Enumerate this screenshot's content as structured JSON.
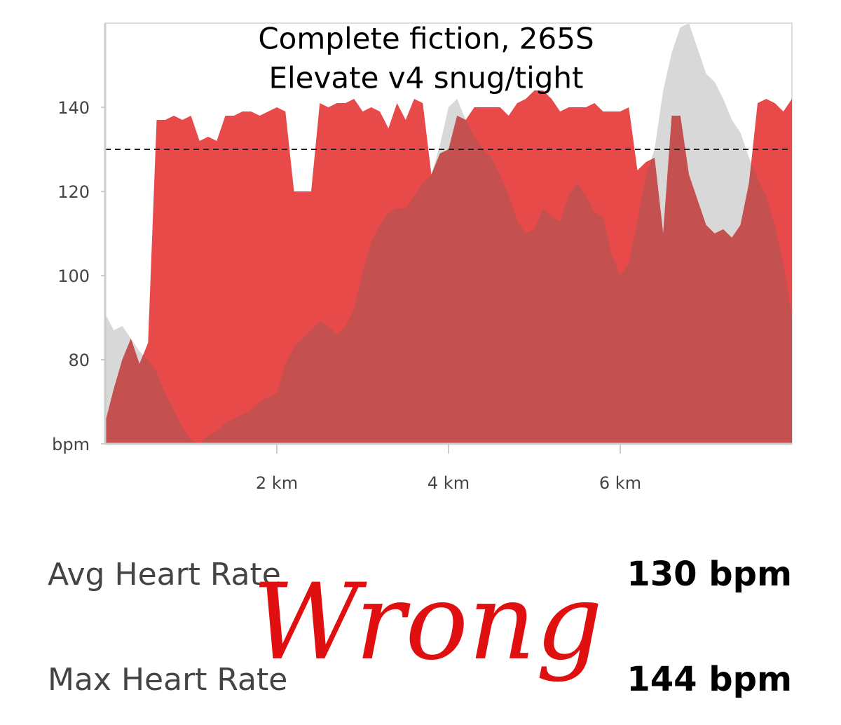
{
  "chart_data": {
    "type": "area",
    "annotations": [
      "Complete fiction, 265S",
      "Elevate v4 snug/tight"
    ],
    "x": [
      0,
      0.1,
      0.2,
      0.3,
      0.4,
      0.5,
      0.6,
      0.7,
      0.8,
      0.9,
      1,
      1.1,
      1.2,
      1.3,
      1.4,
      1.5,
      1.6,
      1.7,
      1.8,
      1.9,
      2,
      2.1,
      2.2,
      2.3,
      2.4,
      2.5,
      2.6,
      2.7,
      2.8,
      2.9,
      3,
      3.1,
      3.2,
      3.3,
      3.4,
      3.5,
      3.6,
      3.7,
      3.8,
      3.9,
      4,
      4.1,
      4.2,
      4.3,
      4.4,
      4.5,
      4.6,
      4.7,
      4.8,
      4.9,
      5,
      5.1,
      5.2,
      5.3,
      5.4,
      5.5,
      5.6,
      5.7,
      5.8,
      5.9,
      6,
      6.1,
      6.2,
      6.3,
      6.4,
      6.5,
      6.6,
      6.7,
      6.8,
      6.9,
      7,
      7.1,
      7.2,
      7.3,
      7.4,
      7.5,
      7.6,
      7.7,
      7.8,
      7.9,
      8
    ],
    "series": [
      {
        "color": "#d8d8d8",
        "values": [
          91,
          87,
          88,
          85,
          82,
          80,
          77,
          72,
          68,
          64,
          61,
          60,
          62,
          63,
          65,
          66,
          67,
          68,
          70,
          71,
          72,
          79,
          83,
          85,
          87,
          89,
          88,
          86,
          88,
          92,
          101,
          108,
          112,
          115,
          116,
          116,
          119,
          122,
          124,
          131,
          140,
          142,
          137,
          133,
          130,
          128,
          124,
          119,
          113,
          110,
          111,
          116,
          114,
          113,
          119,
          122,
          119,
          115,
          114,
          105,
          100,
          103,
          113,
          124,
          130,
          144,
          153,
          159,
          160,
          154,
          148,
          146,
          142,
          137,
          134,
          128,
          123,
          119,
          112,
          103,
          90
        ]
      },
      {
        "color": "#e84a4a",
        "values": [
          65,
          73,
          80,
          85,
          79,
          84,
          137,
          137,
          138,
          137,
          138,
          132,
          133,
          132,
          138,
          138,
          139,
          139,
          138,
          139,
          140,
          139,
          120,
          120,
          120,
          141,
          140,
          141,
          141,
          142,
          139,
          140,
          139,
          135,
          141,
          137,
          142,
          141,
          124,
          129,
          130,
          138,
          137,
          140,
          140,
          140,
          140,
          138,
          141,
          142,
          144,
          144,
          142,
          139,
          140,
          140,
          140,
          141,
          139,
          139,
          139,
          140,
          125,
          127,
          128,
          110,
          138,
          138,
          124,
          118,
          112,
          110,
          111,
          109,
          112,
          122,
          141,
          142,
          141,
          139,
          142
        ]
      }
    ],
    "overlap_color": "#c45050",
    "reference_line": 130,
    "xlim": [
      0,
      8
    ],
    "xticks": [
      {
        "value": 2,
        "label": "2 km"
      },
      {
        "value": 4,
        "label": "4 km"
      },
      {
        "value": 6,
        "label": "6 km"
      }
    ],
    "ylim": [
      60,
      160
    ],
    "yticks": [
      {
        "value": 60,
        "label": "bpm"
      },
      80,
      100,
      120,
      140
    ]
  },
  "stats": [
    {
      "label": "Avg Heart Rate",
      "value": "130 bpm"
    },
    {
      "label": "Max Heart Rate",
      "value": "144 bpm"
    }
  ],
  "handwritten_note": "Wrong"
}
